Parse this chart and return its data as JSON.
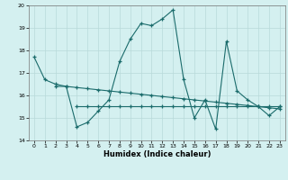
{
  "line1_x": [
    0,
    1,
    2,
    3,
    4,
    5,
    6,
    7,
    8,
    9,
    10,
    11,
    12,
    13,
    14,
    15,
    16,
    17,
    18,
    19,
    20,
    21,
    22,
    23
  ],
  "line1_y": [
    17.7,
    16.7,
    16.5,
    16.4,
    14.6,
    14.8,
    15.3,
    15.8,
    17.5,
    18.5,
    19.2,
    19.1,
    19.4,
    19.8,
    16.7,
    15.0,
    15.8,
    14.5,
    18.4,
    16.2,
    15.8,
    15.5,
    15.1,
    15.5
  ],
  "line2_x": [
    2,
    3,
    4,
    5,
    6,
    7,
    8,
    9,
    10,
    11,
    12,
    13,
    14,
    15,
    16,
    17,
    18,
    19,
    20,
    21,
    22,
    23
  ],
  "line2_y": [
    16.4,
    16.4,
    16.35,
    16.3,
    16.25,
    16.2,
    16.15,
    16.1,
    16.05,
    16.0,
    15.95,
    15.9,
    15.85,
    15.8,
    15.75,
    15.7,
    15.65,
    15.6,
    15.55,
    15.5,
    15.45,
    15.4
  ],
  "line3_x": [
    4,
    5,
    6,
    7,
    8,
    9,
    10,
    11,
    12,
    13,
    14,
    15,
    16,
    17,
    18,
    19,
    20,
    21,
    22,
    23
  ],
  "line3_y": [
    15.5,
    15.5,
    15.5,
    15.5,
    15.5,
    15.5,
    15.5,
    15.5,
    15.5,
    15.5,
    15.5,
    15.5,
    15.5,
    15.5,
    15.5,
    15.5,
    15.5,
    15.5,
    15.5,
    15.5
  ],
  "line_color": "#1a6b6b",
  "bg_color": "#d4f0f0",
  "grid_color": "#b8dada",
  "xlabel": "Humidex (Indice chaleur)",
  "ylim": [
    14,
    20
  ],
  "xlim": [
    -0.5,
    23.5
  ],
  "yticks": [
    14,
    15,
    16,
    17,
    18,
    19,
    20
  ],
  "xticks": [
    0,
    1,
    2,
    3,
    4,
    5,
    6,
    7,
    8,
    9,
    10,
    11,
    12,
    13,
    14,
    15,
    16,
    17,
    18,
    19,
    20,
    21,
    22,
    23
  ]
}
